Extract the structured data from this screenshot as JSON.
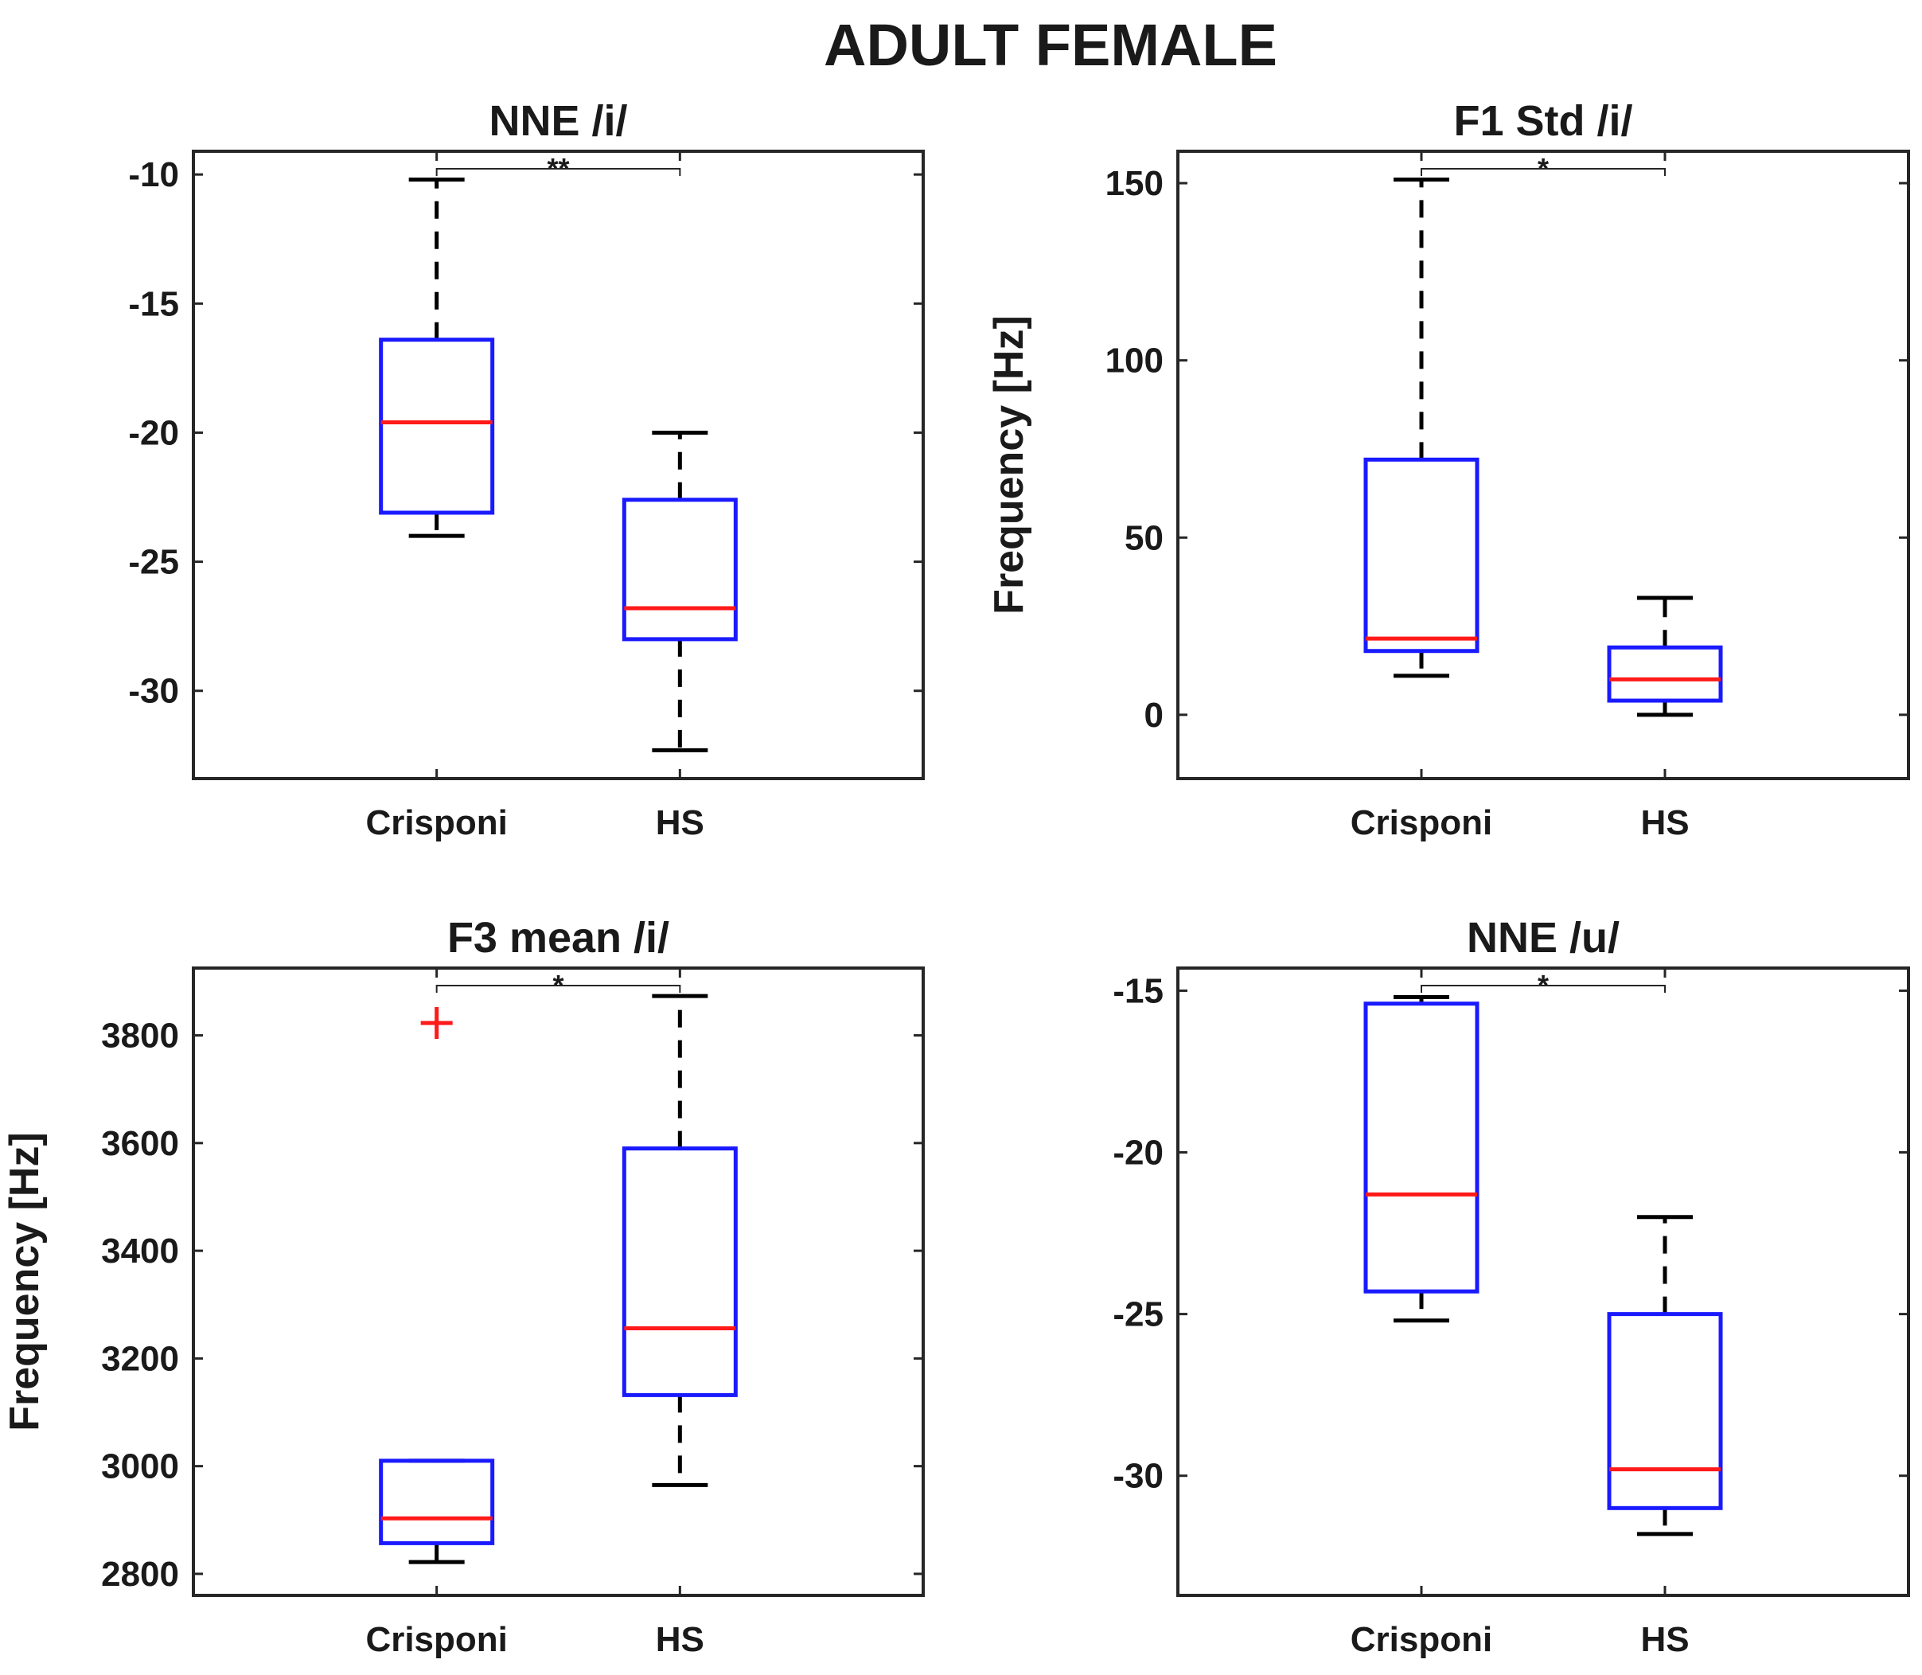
{
  "figure_title": "ADULT FEMALE",
  "colors": {
    "box": "#1a1aff",
    "median": "#ff1a1a",
    "outlier": "#ff1a1a",
    "axis": "#262626",
    "whisker": "#000000"
  },
  "chart_data": [
    {
      "type": "box",
      "title": "NNE /i/",
      "ylabel": "",
      "categories": [
        "Crisponi",
        "HS"
      ],
      "ylim": [
        -33.4,
        -9.1
      ],
      "yticks": [
        -30,
        -25,
        -20,
        -15,
        -10
      ],
      "ytick_labels": [
        "-30",
        "-25",
        "-20",
        "-15",
        "-10"
      ],
      "boxes": [
        {
          "group": "Crisponi",
          "min": -24.0,
          "q1": -23.1,
          "median": -19.6,
          "q3": -16.4,
          "max": -10.2,
          "outliers": []
        },
        {
          "group": "HS",
          "min": -32.3,
          "q1": -28.0,
          "median": -26.8,
          "q3": -22.6,
          "max": -20.0,
          "outliers": []
        }
      ],
      "significance": {
        "from": "Crisponi",
        "to": "HS",
        "label": "**"
      }
    },
    {
      "type": "box",
      "title": "F1 Std /i/",
      "ylabel": "Frequency [Hz]",
      "categories": [
        "Crisponi",
        "HS"
      ],
      "ylim": [
        -18,
        159
      ],
      "yticks": [
        0,
        50,
        100,
        150
      ],
      "ytick_labels": [
        "0",
        "50",
        "100",
        "150"
      ],
      "boxes": [
        {
          "group": "Crisponi",
          "min": 11,
          "q1": 18,
          "median": 21.5,
          "q3": 72,
          "max": 151,
          "outliers": []
        },
        {
          "group": "HS",
          "min": 0,
          "q1": 4,
          "median": 10,
          "q3": 19,
          "max": 33,
          "outliers": []
        }
      ],
      "significance": {
        "from": "Crisponi",
        "to": "HS",
        "label": "*"
      }
    },
    {
      "type": "box",
      "title": "F3 mean /i/",
      "ylabel": "Frequency [Hz]",
      "categories": [
        "Crisponi",
        "HS"
      ],
      "ylim": [
        2760,
        3925
      ],
      "yticks": [
        2800,
        3000,
        3200,
        3400,
        3600,
        3800
      ],
      "ytick_labels": [
        "2800",
        "3000",
        "3200",
        "3400",
        "3600",
        "3800"
      ],
      "boxes": [
        {
          "group": "Crisponi",
          "min": 2822,
          "q1": 2857,
          "median": 2903,
          "q3": 3010,
          "max": 3010,
          "outliers": [
            3823
          ]
        },
        {
          "group": "HS",
          "min": 2965,
          "q1": 3132,
          "median": 3256,
          "q3": 3590,
          "max": 3873,
          "outliers": []
        }
      ],
      "significance": {
        "from": "Crisponi",
        "to": "HS",
        "label": "*"
      }
    },
    {
      "type": "box",
      "title": "NNE /u/",
      "ylabel": "",
      "categories": [
        "Crisponi",
        "HS"
      ],
      "ylim": [
        -33.7,
        -14.3
      ],
      "yticks": [
        -30,
        -25,
        -20,
        -15
      ],
      "ytick_labels": [
        "-30",
        "-25",
        "-20",
        "-15"
      ],
      "boxes": [
        {
          "group": "Crisponi",
          "min": -25.2,
          "q1": -24.3,
          "median": -21.3,
          "q3": -15.4,
          "max": -15.2,
          "outliers": []
        },
        {
          "group": "HS",
          "min": -31.8,
          "q1": -31.0,
          "median": -29.8,
          "q3": -25.0,
          "max": -22.0,
          "outliers": []
        }
      ],
      "significance": {
        "from": "Crisponi",
        "to": "HS",
        "label": "*"
      }
    }
  ]
}
